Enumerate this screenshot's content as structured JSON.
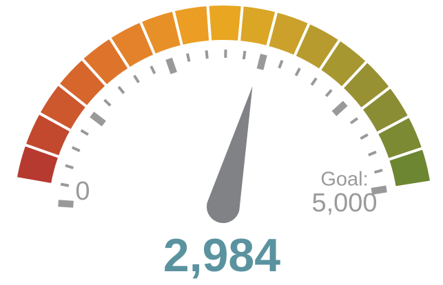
{
  "chart_data": {
    "type": "gauge",
    "value": 2984,
    "value_label": "2,984",
    "range": [
      0,
      5000
    ],
    "min_label": "0",
    "goal_label": "Goal:",
    "max_label": "5,000",
    "major_ticks": [
      0,
      1000,
      2000,
      3000,
      4000,
      5000
    ],
    "minor_ticks": [
      200,
      400,
      600,
      800,
      1200,
      1400,
      1600,
      1800,
      2200,
      2400,
      2600,
      2800,
      3200,
      3400,
      3600,
      3800,
      4200,
      4400,
      4600,
      4800
    ],
    "band_colors": [
      "#b63a30",
      "#c2482e",
      "#cd582e",
      "#d6662c",
      "#de742b",
      "#e3822a",
      "#e89028",
      "#eb9d24",
      "#e9a621",
      "#dba526",
      "#cba12b",
      "#b89b2f",
      "#a79731",
      "#989133",
      "#8a8d33",
      "#7c8a33",
      "#6d8631"
    ],
    "needle_color": "#808285",
    "tick_color": "#999999"
  }
}
